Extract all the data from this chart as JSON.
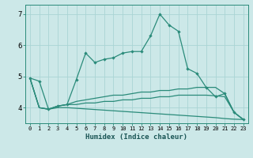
{
  "xlabel": "Humidex (Indice chaleur)",
  "x": [
    0,
    1,
    2,
    3,
    4,
    5,
    6,
    7,
    8,
    9,
    10,
    11,
    12,
    13,
    14,
    15,
    16,
    17,
    18,
    19,
    20,
    21,
    22,
    23
  ],
  "line1": [
    4.95,
    4.85,
    3.95,
    4.05,
    4.1,
    4.9,
    5.75,
    5.45,
    5.55,
    5.6,
    5.75,
    5.8,
    5.8,
    6.3,
    7.0,
    6.65,
    6.45,
    5.25,
    5.1,
    4.65,
    4.35,
    4.45,
    3.85,
    3.62
  ],
  "line2": [
    4.95,
    4.0,
    3.95,
    4.05,
    4.1,
    4.2,
    4.25,
    4.3,
    4.35,
    4.4,
    4.4,
    4.45,
    4.5,
    4.5,
    4.55,
    4.55,
    4.6,
    4.6,
    4.65,
    4.65,
    4.65,
    4.45,
    3.85,
    3.62
  ],
  "line3": [
    4.95,
    4.0,
    3.95,
    4.05,
    4.1,
    4.1,
    4.15,
    4.15,
    4.2,
    4.2,
    4.25,
    4.25,
    4.3,
    4.3,
    4.35,
    4.35,
    4.4,
    4.4,
    4.4,
    4.4,
    4.38,
    4.35,
    3.85,
    3.62
  ],
  "line4": [
    4.95,
    4.0,
    3.95,
    4.0,
    4.0,
    3.98,
    3.96,
    3.94,
    3.92,
    3.9,
    3.88,
    3.86,
    3.84,
    3.82,
    3.8,
    3.78,
    3.76,
    3.74,
    3.72,
    3.7,
    3.68,
    3.65,
    3.63,
    3.62
  ],
  "color": "#2a8b7a",
  "bg_color": "#cce8e8",
  "grid_color": "#aad4d4",
  "ylim": [
    3.5,
    7.3
  ],
  "yticks": [
    4,
    5,
    6,
    7
  ]
}
